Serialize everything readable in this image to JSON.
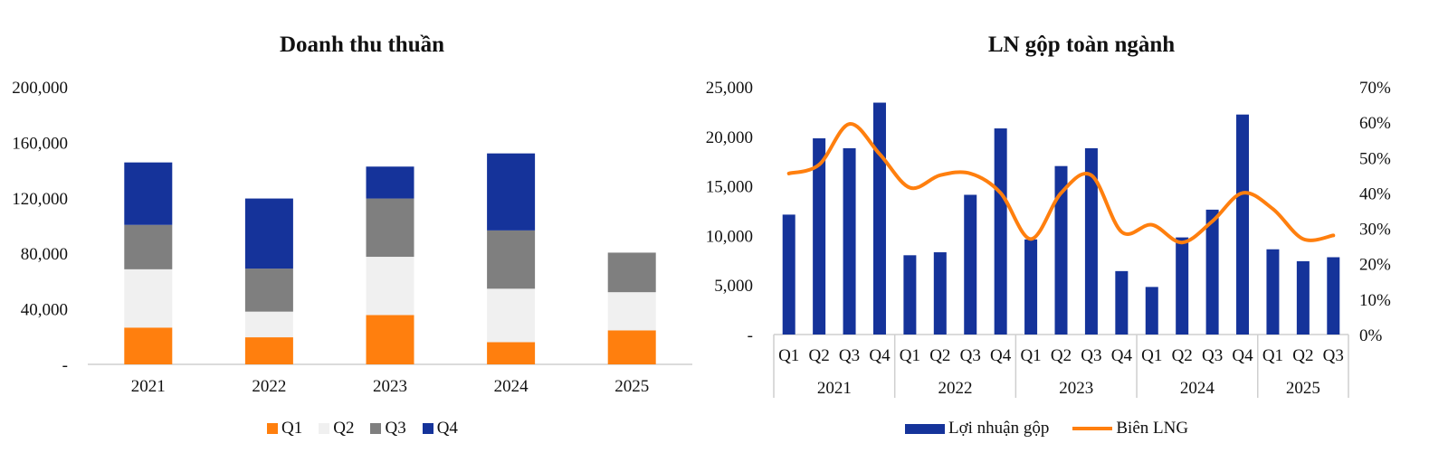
{
  "chart_data": [
    {
      "type": "bar",
      "stacked": true,
      "title": "Doanh thu thuần",
      "categories": [
        "2021",
        "2022",
        "2023",
        "2024",
        "2025"
      ],
      "series": [
        {
          "name": "Q1",
          "color": "#FF7F0E",
          "values": [
            26500,
            19500,
            35500,
            16000,
            24500
          ]
        },
        {
          "name": "Q2",
          "color": "#F0F0F0",
          "values": [
            42000,
            18500,
            42000,
            38500,
            27500
          ]
        },
        {
          "name": "Q3",
          "color": "#7F7F7F",
          "values": [
            32000,
            31000,
            42000,
            42000,
            28500
          ]
        },
        {
          "name": "Q4",
          "color": "#15339A",
          "values": [
            45000,
            50500,
            23000,
            55500,
            0
          ]
        }
      ],
      "ylim": [
        0,
        200000
      ],
      "yticks": [
        "-",
        "40,000",
        "80,000",
        "120,000",
        "160,000",
        "200,000"
      ],
      "grid": false,
      "legend": "bottom"
    },
    {
      "type": "bar",
      "combo": "bar-line-dual-axis",
      "title": "LN gộp toàn ngành",
      "quarters": [
        "Q1",
        "Q2",
        "Q3",
        "Q4",
        "Q1",
        "Q2",
        "Q3",
        "Q4",
        "Q1",
        "Q2",
        "Q3",
        "Q4",
        "Q1",
        "Q2",
        "Q3",
        "Q4",
        "Q1",
        "Q2",
        "Q3"
      ],
      "years": [
        "2021",
        "2022",
        "2023",
        "2024",
        "2025"
      ],
      "quarters_per_year": [
        4,
        4,
        4,
        4,
        3
      ],
      "series": [
        {
          "name": "Lợi nhuận gộp",
          "color": "#15339A",
          "axis": "left",
          "values": [
            12100,
            19800,
            18800,
            23400,
            8000,
            8300,
            14100,
            20800,
            9600,
            17000,
            18800,
            6400,
            4800,
            9800,
            12600,
            22200,
            8600,
            7400,
            7800
          ]
        },
        {
          "name": "Biên LNG",
          "color": "#FF7F0E",
          "axis": "right",
          "unit": "%",
          "values": [
            45.5,
            48,
            59.5,
            51,
            41.5,
            45,
            45.5,
            40,
            27,
            40,
            45,
            29,
            31,
            26,
            32,
            40,
            35.5,
            27,
            28
          ]
        }
      ],
      "ylim_left": [
        0,
        25000
      ],
      "yticks_left": [
        "-",
        "5,000",
        "10,000",
        "15,000",
        "20,000",
        "25,000"
      ],
      "ylim_right": [
        0,
        70
      ],
      "yticks_right": [
        "0%",
        "10%",
        "20%",
        "30%",
        "40%",
        "50%",
        "60%",
        "70%"
      ],
      "grid": false,
      "legend": "bottom"
    }
  ]
}
